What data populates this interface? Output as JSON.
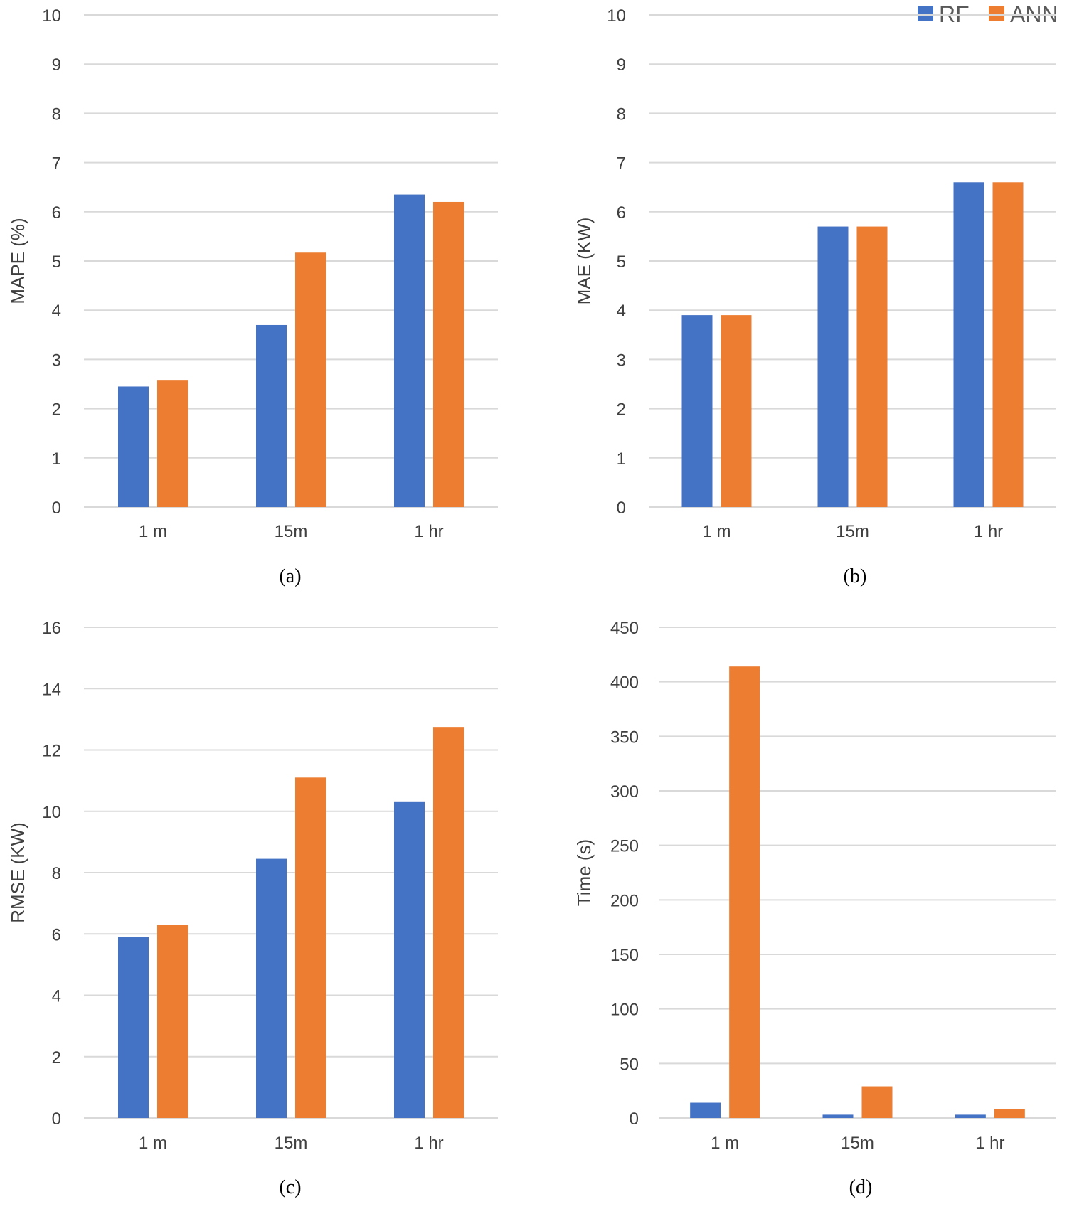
{
  "legend": {
    "series": [
      "RF",
      "ANN"
    ],
    "position": "top-right"
  },
  "colors": {
    "RF": "#4472c4",
    "ANN": "#ed7d31",
    "grid": "#d9d9d9",
    "text": "#404040"
  },
  "chart_data": [
    {
      "type": "bar",
      "caption": "(a)",
      "ylabel": "MAPE (%)",
      "categories": [
        "1 m",
        "15m",
        "1 hr"
      ],
      "ylim": [
        0,
        10
      ],
      "yticks": [
        0,
        1,
        2,
        3,
        4,
        5,
        6,
        7,
        8,
        9,
        10
      ],
      "series": [
        {
          "name": "RF",
          "values": [
            2.45,
            3.7,
            6.35
          ]
        },
        {
          "name": "ANN",
          "values": [
            2.57,
            5.17,
            6.2
          ]
        }
      ]
    },
    {
      "type": "bar",
      "caption": "(b)",
      "ylabel": "MAE (KW)",
      "categories": [
        "1 m",
        "15m",
        "1 hr"
      ],
      "ylim": [
        0,
        10
      ],
      "yticks": [
        0,
        1,
        2,
        3,
        4,
        5,
        6,
        7,
        8,
        9,
        10
      ],
      "series": [
        {
          "name": "RF",
          "values": [
            3.9,
            5.7,
            6.6
          ]
        },
        {
          "name": "ANN",
          "values": [
            3.9,
            5.7,
            6.6
          ]
        }
      ]
    },
    {
      "type": "bar",
      "caption": "(c)",
      "ylabel": "RMSE (KW)",
      "categories": [
        "1 m",
        "15m",
        "1 hr"
      ],
      "ylim": [
        0,
        16
      ],
      "yticks": [
        0,
        2,
        4,
        6,
        8,
        10,
        12,
        14,
        16
      ],
      "series": [
        {
          "name": "RF",
          "values": [
            5.9,
            8.45,
            10.3
          ]
        },
        {
          "name": "ANN",
          "values": [
            6.3,
            11.1,
            12.75
          ]
        }
      ]
    },
    {
      "type": "bar",
      "caption": "(d)",
      "ylabel": "Time (s)",
      "categories": [
        "1 m",
        "15m",
        "1 hr"
      ],
      "ylim": [
        0,
        450
      ],
      "yticks": [
        0,
        50,
        100,
        150,
        200,
        250,
        300,
        350,
        400,
        450
      ],
      "series": [
        {
          "name": "RF",
          "values": [
            14,
            3,
            3
          ]
        },
        {
          "name": "ANN",
          "values": [
            414,
            29,
            8
          ]
        }
      ]
    }
  ]
}
